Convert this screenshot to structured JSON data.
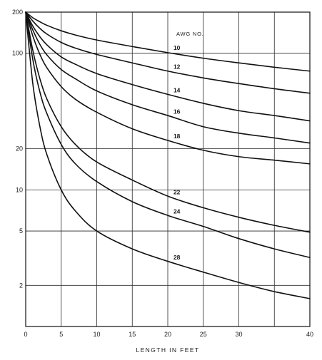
{
  "chart_data": {
    "type": "line",
    "xlabel": "LENGTH IN FEET",
    "ylabel": "",
    "legend_title": "AWG NO.",
    "xlim": [
      0,
      40
    ],
    "ylim": [
      1,
      200
    ],
    "y_scale": "log",
    "grid": true,
    "x_ticks": [
      0,
      5,
      10,
      15,
      20,
      25,
      30,
      40
    ],
    "x_tick_labels": [
      "0",
      "5",
      "10",
      "15",
      "20",
      "25",
      "30",
      "40"
    ],
    "y_ticks": [
      200,
      100,
      20,
      10,
      5,
      2
    ],
    "y_tick_labels": [
      "200",
      "100",
      "20",
      "10",
      "5",
      "2"
    ],
    "x_gridlines": [
      0,
      5,
      10,
      15,
      20,
      25,
      30,
      35,
      40
    ],
    "y_gridlines": [
      200,
      100,
      20,
      10,
      5,
      2
    ],
    "series": [
      {
        "name": "10",
        "x": [
          0,
          1,
          2,
          3,
          5,
          7,
          10,
          15,
          20,
          25,
          30,
          35,
          40
        ],
        "y": [
          200,
          182,
          170,
          160,
          146,
          136,
          125,
          112,
          101,
          92,
          85,
          79,
          74
        ]
      },
      {
        "name": "12",
        "x": [
          0,
          1,
          2,
          3,
          5,
          7,
          10,
          15,
          20,
          25,
          30,
          35,
          40
        ],
        "y": [
          200,
          172,
          152,
          138,
          120,
          109,
          98,
          85,
          74,
          66,
          60,
          55,
          51
        ]
      },
      {
        "name": "14",
        "x": [
          0,
          1,
          2,
          3,
          5,
          7,
          10,
          15,
          20,
          25,
          30,
          35,
          40
        ],
        "y": [
          200,
          158,
          132,
          115,
          94,
          83,
          71,
          59,
          50,
          43,
          38,
          35,
          32
        ]
      },
      {
        "name": "16",
        "x": [
          0,
          1,
          2,
          3,
          5,
          7,
          10,
          15,
          20,
          25,
          30,
          35,
          40
        ],
        "y": [
          200,
          148,
          116,
          97,
          76,
          65,
          53,
          42,
          35,
          29,
          26,
          24,
          22
        ]
      },
      {
        "name": "18",
        "x": [
          0,
          1,
          2,
          3,
          5,
          7,
          10,
          15,
          20,
          25,
          30,
          35,
          40
        ],
        "y": [
          200,
          134,
          98,
          78,
          57,
          46,
          37,
          28,
          23,
          19.5,
          17.5,
          16.5,
          15.5
        ]
      },
      {
        "name": "22",
        "x": [
          0,
          1,
          2,
          3,
          5,
          7,
          10,
          15,
          20,
          25,
          30,
          35,
          40
        ],
        "y": [
          200,
          105,
          65,
          46,
          29,
          21.5,
          16,
          11.8,
          9,
          7.4,
          6.3,
          5.5,
          4.9
        ]
      },
      {
        "name": "24",
        "x": [
          0,
          1,
          2,
          3,
          5,
          7,
          10,
          15,
          20,
          25,
          30,
          35,
          40
        ],
        "y": [
          200,
          90,
          52,
          36,
          21.5,
          15.5,
          11.5,
          8.2,
          6.5,
          5.4,
          4.4,
          3.7,
          3.2
        ]
      },
      {
        "name": "28",
        "x": [
          0,
          1,
          2,
          3,
          5,
          7,
          10,
          15,
          20,
          25,
          30,
          35,
          40
        ],
        "y": [
          200,
          60,
          29,
          18,
          10,
          7,
          5,
          3.7,
          3,
          2.5,
          2.1,
          1.8,
          1.6
        ]
      }
    ]
  }
}
